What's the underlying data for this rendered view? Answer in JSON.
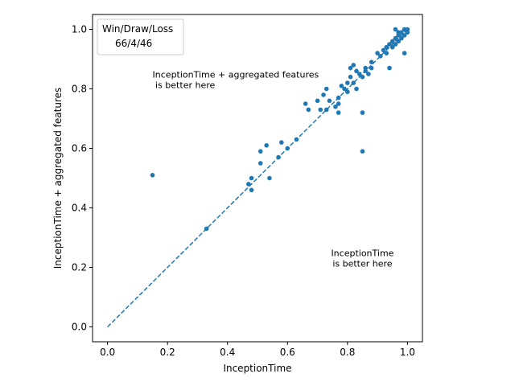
{
  "chart_data": {
    "type": "scatter",
    "xlabel": "InceptionTime",
    "ylabel": "InceptionTime + aggregated features",
    "xlim": [
      -0.05,
      1.05
    ],
    "ylim": [
      -0.05,
      1.05
    ],
    "xticks": [
      "0.0",
      "0.2",
      "0.4",
      "0.6",
      "0.8",
      "1.0"
    ],
    "yticks": [
      "0.0",
      "0.2",
      "0.4",
      "0.6",
      "0.8",
      "1.0"
    ],
    "legend": {
      "title": "Win/Draw/Loss",
      "entry": "66/4/46",
      "placement": "top-left"
    },
    "annotations": [
      {
        "lines": [
          "InceptionTime + aggregated features",
          " is better here"
        ],
        "x": 0.15,
        "y": 0.8,
        "align": "start"
      },
      {
        "lines": [
          "InceptionTime",
          "is better here"
        ],
        "x": 0.85,
        "y": 0.2,
        "align": "middle"
      }
    ],
    "diagonal": {
      "from": [
        0,
        0
      ],
      "to": [
        1,
        1
      ],
      "style": "dashed",
      "color": "#1f77b4"
    },
    "point_color": "#1f77b4",
    "points": [
      [
        0.15,
        0.51
      ],
      [
        0.33,
        0.33
      ],
      [
        0.47,
        0.48
      ],
      [
        0.48,
        0.46
      ],
      [
        0.48,
        0.5
      ],
      [
        0.51,
        0.55
      ],
      [
        0.51,
        0.59
      ],
      [
        0.53,
        0.61
      ],
      [
        0.54,
        0.5
      ],
      [
        0.57,
        0.57
      ],
      [
        0.58,
        0.62
      ],
      [
        0.6,
        0.6
      ],
      [
        0.63,
        0.63
      ],
      [
        0.66,
        0.75
      ],
      [
        0.67,
        0.73
      ],
      [
        0.7,
        0.76
      ],
      [
        0.71,
        0.73
      ],
      [
        0.72,
        0.78
      ],
      [
        0.73,
        0.73
      ],
      [
        0.73,
        0.8
      ],
      [
        0.74,
        0.76
      ],
      [
        0.76,
        0.74
      ],
      [
        0.77,
        0.75
      ],
      [
        0.77,
        0.77
      ],
      [
        0.77,
        0.72
      ],
      [
        0.78,
        0.81
      ],
      [
        0.79,
        0.8
      ],
      [
        0.8,
        0.82
      ],
      [
        0.8,
        0.79
      ],
      [
        0.81,
        0.84
      ],
      [
        0.81,
        0.87
      ],
      [
        0.82,
        0.88
      ],
      [
        0.82,
        0.82
      ],
      [
        0.83,
        0.8
      ],
      [
        0.83,
        0.86
      ],
      [
        0.84,
        0.85
      ],
      [
        0.85,
        0.72
      ],
      [
        0.85,
        0.59
      ],
      [
        0.85,
        0.84
      ],
      [
        0.86,
        0.87
      ],
      [
        0.86,
        0.86
      ],
      [
        0.87,
        0.85
      ],
      [
        0.88,
        0.87
      ],
      [
        0.88,
        0.89
      ],
      [
        0.9,
        0.92
      ],
      [
        0.91,
        0.91
      ],
      [
        0.92,
        0.93
      ],
      [
        0.93,
        0.92
      ],
      [
        0.93,
        0.94
      ],
      [
        0.94,
        0.87
      ],
      [
        0.94,
        0.95
      ],
      [
        0.95,
        0.96
      ],
      [
        0.95,
        0.94
      ],
      [
        0.96,
        0.95
      ],
      [
        0.96,
        0.97
      ],
      [
        0.97,
        0.96
      ],
      [
        0.97,
        0.98
      ],
      [
        0.98,
        0.97
      ],
      [
        0.98,
        0.99
      ],
      [
        0.99,
        0.98
      ],
      [
        0.99,
        1.0
      ],
      [
        1.0,
        1.0
      ],
      [
        0.99,
        0.92
      ],
      [
        0.96,
        1.0
      ],
      [
        0.97,
        0.99
      ],
      [
        1.0,
        0.99
      ]
    ]
  }
}
